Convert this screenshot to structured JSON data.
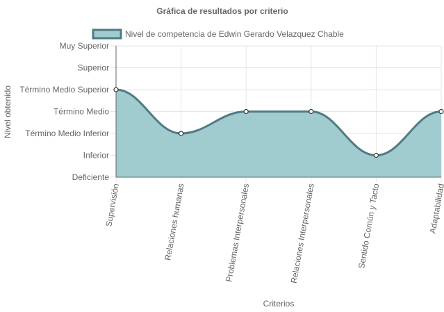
{
  "chart_data": {
    "type": "area",
    "title": "Gráfica de resultados por criterio",
    "xlabel": "Criterios",
    "ylabel": "Nivel obtenido",
    "categories": [
      "Supervisión",
      "Relaciones humanas",
      "Problemas Interpersonales",
      "Relaciones Interpersonales",
      "Sentido Común y Tacto",
      "Adaptabilidad"
    ],
    "y_levels": [
      "Deficiente",
      "Inferior",
      "Término Medio Inferior",
      "Término Medio",
      "Término Medio Superior",
      "Superior",
      "Muy Superior"
    ],
    "series": [
      {
        "name": "Nivel de competencia de Edwin Gerardo Velazquez Chable",
        "values": [
          4,
          2,
          3,
          3,
          1,
          3
        ],
        "levels": [
          "Término Medio Superior",
          "Término Medio Inferior",
          "Término Medio",
          "Término Medio",
          "Inferior",
          "Término Medio"
        ]
      }
    ],
    "ylim": [
      0,
      6
    ],
    "grid": true,
    "legend_position": "top",
    "colors": {
      "fill": "#a0cbcf",
      "line": "#4f7b84",
      "point_fill": "#ffffff",
      "point_stroke": "#333333",
      "grid": "#e5e5e5",
      "axis": "#666666"
    }
  }
}
